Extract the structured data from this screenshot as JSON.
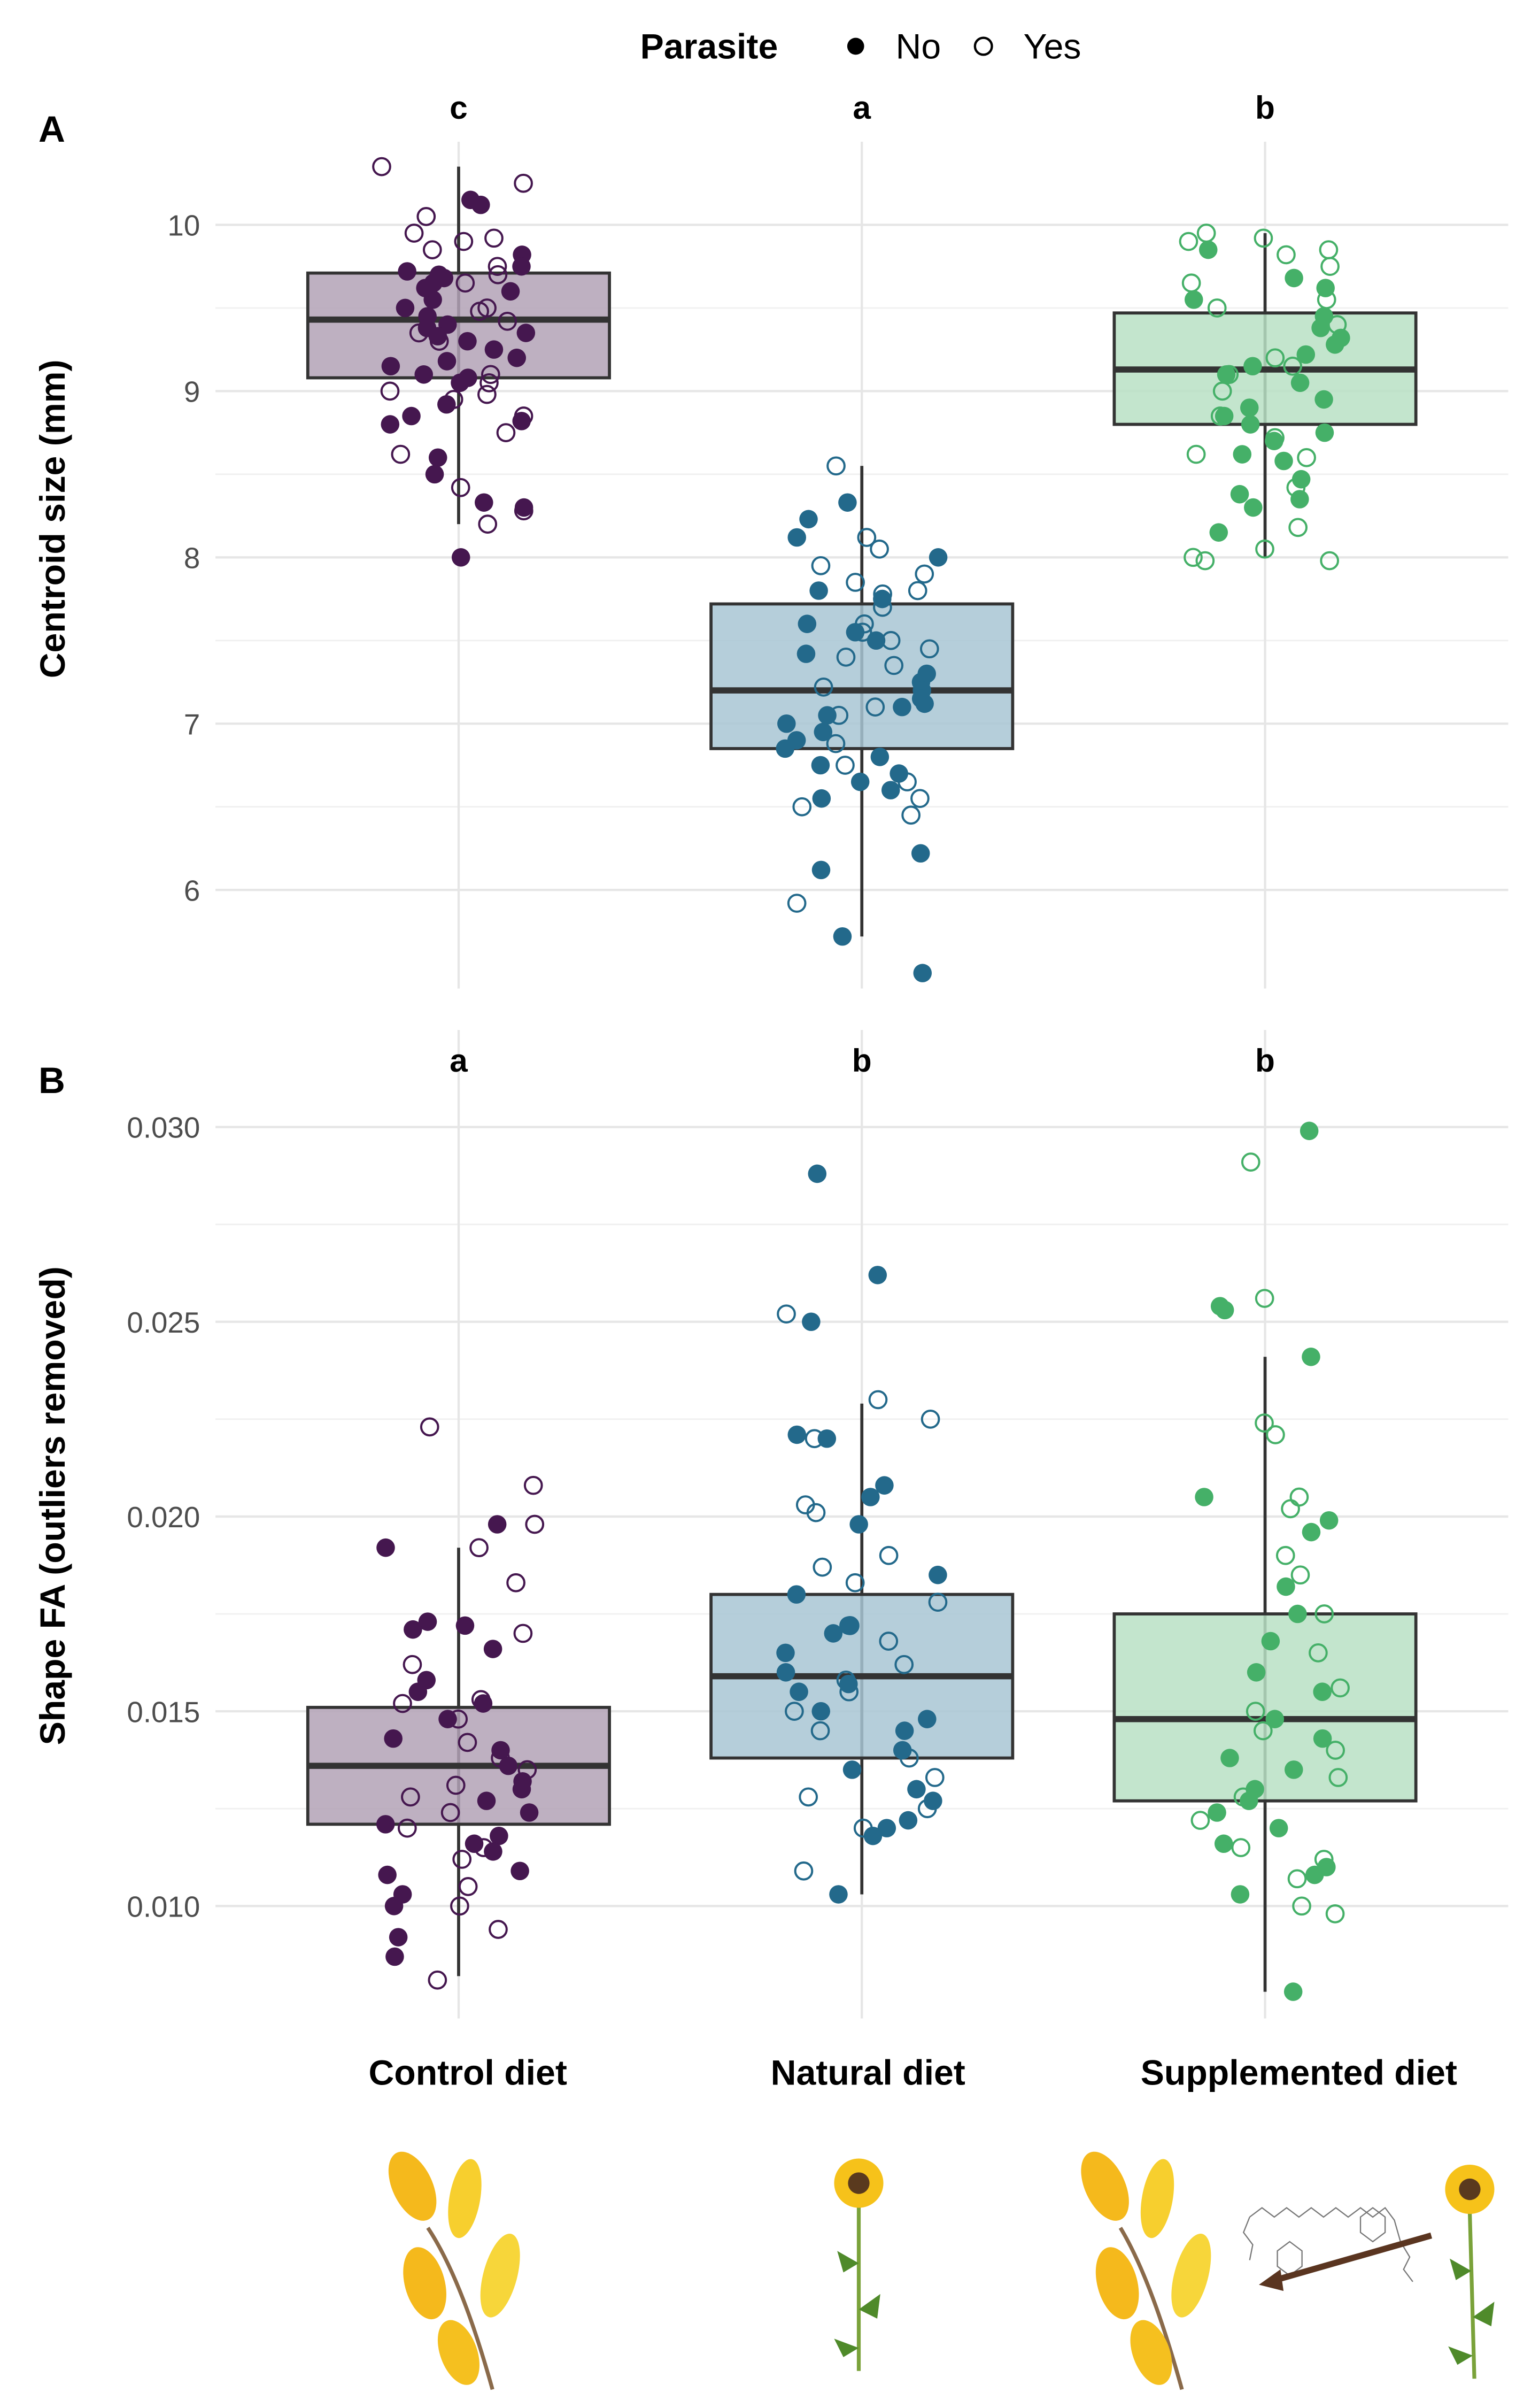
{
  "legend": {
    "title": "Parasite",
    "items": [
      {
        "label": "No",
        "shape": "filled"
      },
      {
        "label": "Yes",
        "shape": "open"
      }
    ]
  },
  "colors": {
    "control": "#45174f",
    "natural": "#23698b",
    "supplemented": "#45b068",
    "control_fill": "#b3a2b6",
    "natural_fill": "#a8c6d3",
    "supplemented_fill": "#b9e0c4"
  },
  "chart_data": [
    {
      "type": "box",
      "panel": "A",
      "ylabel": "Centroid size (mm)",
      "categories": [
        "Control diet",
        "Natural diet",
        "Supplemented diet"
      ],
      "significance": [
        "c",
        "a",
        "b"
      ],
      "ylim": [
        5.45,
        10.5
      ],
      "yticks": [
        6,
        7,
        8,
        9,
        10
      ],
      "ytick_labels": [
        "6",
        "7",
        "8",
        "9",
        "10"
      ],
      "grid": true,
      "boxes": [
        {
          "q1": 9.08,
          "median": 9.43,
          "q3": 9.71,
          "whisker_low": 8.2,
          "whisker_high": 10.35
        },
        {
          "q1": 6.85,
          "median": 7.2,
          "q3": 7.72,
          "whisker_low": 5.72,
          "whisker_high": 8.55
        },
        {
          "q1": 8.8,
          "median": 9.13,
          "q3": 9.47,
          "whisker_low": 8.0,
          "whisker_high": 9.95
        }
      ],
      "points": [
        {
          "no": [
            10.12,
            10.15,
            9.82,
            9.75,
            9.7,
            9.65,
            9.6,
            9.55,
            9.5,
            9.45,
            9.4,
            9.38,
            9.35,
            9.3,
            9.25,
            9.2,
            9.15,
            9.1,
            9.08,
            9.05,
            8.92,
            8.85,
            8.82,
            8.8,
            8.6,
            8.5,
            8.33,
            8.3,
            8.0,
            9.72,
            9.68,
            9.62,
            9.33,
            9.18
          ],
          "yes": [
            10.35,
            10.25,
            10.05,
            9.95,
            9.92,
            9.9,
            9.85,
            9.75,
            9.7,
            9.65,
            9.5,
            9.48,
            9.42,
            9.35,
            9.3,
            9.1,
            9.05,
            9.0,
            8.98,
            8.95,
            8.85,
            8.75,
            8.62,
            8.42,
            8.28,
            8.2
          ]
        },
        {
          "no": [
            8.33,
            8.23,
            8.12,
            8.0,
            7.8,
            7.75,
            7.6,
            7.55,
            7.5,
            7.42,
            7.3,
            7.25,
            7.2,
            7.15,
            7.12,
            7.1,
            7.05,
            7.0,
            6.95,
            6.9,
            6.85,
            6.8,
            6.75,
            6.7,
            6.65,
            6.6,
            6.55,
            6.22,
            6.12,
            5.72,
            5.5
          ],
          "yes": [
            8.55,
            8.12,
            8.05,
            7.95,
            7.9,
            7.85,
            7.8,
            7.78,
            7.7,
            7.6,
            7.55,
            7.5,
            7.45,
            7.4,
            7.35,
            7.22,
            7.1,
            7.05,
            6.88,
            6.75,
            6.65,
            6.55,
            6.5,
            6.45,
            5.92
          ]
        },
        {
          "no": [
            9.85,
            9.68,
            9.62,
            9.55,
            9.45,
            9.38,
            9.32,
            9.28,
            9.22,
            9.15,
            9.1,
            9.05,
            8.95,
            8.9,
            8.85,
            8.8,
            8.75,
            8.7,
            8.62,
            8.58,
            8.47,
            8.38,
            8.35,
            8.3,
            8.15
          ],
          "yes": [
            9.95,
            9.92,
            9.9,
            9.85,
            9.82,
            9.75,
            9.65,
            9.55,
            9.5,
            9.4,
            9.2,
            9.15,
            9.1,
            9.0,
            8.85,
            8.72,
            8.62,
            8.6,
            8.42,
            8.18,
            8.05,
            8.0,
            7.98,
            7.98
          ]
        }
      ]
    },
    {
      "type": "box",
      "panel": "B",
      "ylabel": "Shape FA (outliers removed)",
      "categories": [
        "Control diet",
        "Natural diet",
        "Supplemented diet"
      ],
      "significance": [
        "a",
        "b",
        "b"
      ],
      "ylim": [
        0.0075,
        0.0325
      ],
      "yticks": [
        0.01,
        0.015,
        0.02,
        0.025,
        0.03
      ],
      "ytick_labels": [
        "0.010",
        "0.015",
        "0.020",
        "0.025",
        "0.030"
      ],
      "grid": true,
      "boxes": [
        {
          "q1": 0.0121,
          "median": 0.0136,
          "q3": 0.0151,
          "whisker_low": 0.0082,
          "whisker_high": 0.0192
        },
        {
          "q1": 0.0138,
          "median": 0.0159,
          "q3": 0.018,
          "whisker_low": 0.0103,
          "whisker_high": 0.0229
        },
        {
          "q1": 0.0127,
          "median": 0.0148,
          "q3": 0.0175,
          "whisker_low": 0.0078,
          "whisker_high": 0.0241
        }
      ],
      "points": [
        {
          "no": [
            0.0198,
            0.0192,
            0.0173,
            0.0172,
            0.0171,
            0.0166,
            0.0158,
            0.0155,
            0.0152,
            0.0148,
            0.0143,
            0.014,
            0.0136,
            0.0132,
            0.013,
            0.0127,
            0.0124,
            0.0121,
            0.0118,
            0.0116,
            0.0114,
            0.0109,
            0.0108,
            0.0103,
            0.01,
            0.0092,
            0.0087
          ],
          "yes": [
            0.0223,
            0.0208,
            0.0198,
            0.0192,
            0.0183,
            0.017,
            0.0162,
            0.0153,
            0.0152,
            0.0148,
            0.0142,
            0.0138,
            0.0135,
            0.0131,
            0.0128,
            0.0124,
            0.012,
            0.0115,
            0.0112,
            0.0105,
            0.01,
            0.0094,
            0.0081
          ]
        },
        {
          "no": [
            0.0288,
            0.0262,
            0.025,
            0.0221,
            0.022,
            0.0208,
            0.0205,
            0.0198,
            0.0185,
            0.018,
            0.0172,
            0.017,
            0.0165,
            0.016,
            0.0157,
            0.0155,
            0.015,
            0.0148,
            0.0145,
            0.014,
            0.0135,
            0.013,
            0.0127,
            0.0122,
            0.012,
            0.0118,
            0.0103
          ],
          "yes": [
            0.0252,
            0.023,
            0.0225,
            0.022,
            0.0203,
            0.0201,
            0.019,
            0.0187,
            0.0183,
            0.0178,
            0.0172,
            0.0168,
            0.0162,
            0.0158,
            0.0155,
            0.015,
            0.0145,
            0.0138,
            0.0133,
            0.0128,
            0.0125,
            0.012,
            0.0109
          ]
        },
        {
          "no": [
            0.0299,
            0.0254,
            0.0253,
            0.0241,
            0.0205,
            0.0199,
            0.0196,
            0.0182,
            0.0175,
            0.0168,
            0.016,
            0.0155,
            0.0148,
            0.0143,
            0.0138,
            0.0135,
            0.013,
            0.0127,
            0.0124,
            0.012,
            0.0116,
            0.011,
            0.0108,
            0.0103,
            0.0078
          ],
          "yes": [
            0.0291,
            0.0256,
            0.0224,
            0.0221,
            0.0205,
            0.0202,
            0.019,
            0.0185,
            0.0175,
            0.0165,
            0.0156,
            0.015,
            0.0145,
            0.014,
            0.0133,
            0.0128,
            0.0122,
            0.0115,
            0.0112,
            0.0107,
            0.01,
            0.0098
          ]
        }
      ]
    }
  ]
}
